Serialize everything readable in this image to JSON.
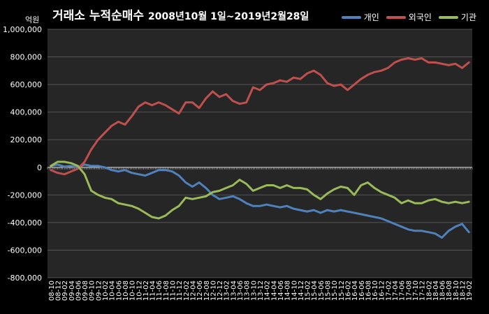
{
  "chart_data": {
    "type": "line",
    "title": "거래소 누적순매수",
    "subtitle": "2008년10월 1일~2019년2월28일",
    "ylabel": "억원",
    "ylim": [
      -800000,
      1000000
    ],
    "yticks": [
      "1,000,000",
      "800,000",
      "600,000",
      "400,000",
      "200,000",
      "0",
      "-200,000",
      "-400,000",
      "-600,000",
      "-800,000"
    ],
    "ytick_values": [
      1000000,
      800000,
      600000,
      400000,
      200000,
      0,
      -200000,
      -400000,
      -600000,
      -800000
    ],
    "grid": true,
    "legend": "top-right",
    "x": [
      "08-10",
      "08-12",
      "09-02",
      "09-04",
      "09-06",
      "09-08",
      "09-10",
      "09-12",
      "10-02",
      "10-04",
      "10-06",
      "10-08",
      "10-10",
      "10-12",
      "11-02",
      "11-04",
      "11-06",
      "11-08",
      "11-10",
      "11-12",
      "12-02",
      "12-04",
      "12-06",
      "12-08",
      "12-10",
      "12-12",
      "13-02",
      "13-04",
      "13-06",
      "13-08",
      "13-10",
      "13-12",
      "14-02",
      "14-04",
      "14-06",
      "14-08",
      "14-10",
      "14-12",
      "15-02",
      "15-04",
      "15-06",
      "15-08",
      "15-10",
      "15-12",
      "16-02",
      "16-04",
      "16-06",
      "16-08",
      "16-10",
      "16-12",
      "17-02",
      "17-04",
      "17-06",
      "17-08",
      "17-10",
      "17-12",
      "18-02",
      "18-04",
      "18-06",
      "18-08",
      "18-10",
      "18-12",
      "19-02"
    ],
    "series": [
      {
        "name": "개인",
        "color": "#4f81bd",
        "values": [
          10000,
          20000,
          5000,
          10000,
          0,
          20000,
          10000,
          10000,
          0,
          -20000,
          -30000,
          -20000,
          -40000,
          -50000,
          -60000,
          -40000,
          -20000,
          -20000,
          -30000,
          -60000,
          -110000,
          -140000,
          -110000,
          -150000,
          -200000,
          -230000,
          -220000,
          -210000,
          -230000,
          -260000,
          -280000,
          -280000,
          -270000,
          -280000,
          -290000,
          -280000,
          -300000,
          -310000,
          -320000,
          -310000,
          -330000,
          -310000,
          -320000,
          -310000,
          -320000,
          -330000,
          -340000,
          -350000,
          -360000,
          -370000,
          -390000,
          -410000,
          -430000,
          -450000,
          -460000,
          -460000,
          -470000,
          -480000,
          -510000,
          -460000,
          -430000,
          -410000,
          -470000
        ]
      },
      {
        "name": "외국인",
        "color": "#c0504d",
        "values": [
          -20000,
          -40000,
          -50000,
          -30000,
          -10000,
          40000,
          130000,
          200000,
          250000,
          300000,
          330000,
          310000,
          370000,
          440000,
          470000,
          450000,
          470000,
          450000,
          420000,
          390000,
          470000,
          470000,
          430000,
          500000,
          550000,
          510000,
          530000,
          480000,
          460000,
          470000,
          580000,
          560000,
          600000,
          610000,
          630000,
          620000,
          650000,
          640000,
          680000,
          700000,
          670000,
          610000,
          590000,
          600000,
          560000,
          600000,
          640000,
          670000,
          690000,
          700000,
          720000,
          760000,
          780000,
          790000,
          780000,
          790000,
          760000,
          760000,
          750000,
          740000,
          750000,
          720000,
          760000
        ]
      },
      {
        "name": "기관",
        "color": "#9bbb59",
        "values": [
          10000,
          40000,
          40000,
          30000,
          10000,
          -50000,
          -170000,
          -200000,
          -220000,
          -230000,
          -260000,
          -270000,
          -280000,
          -300000,
          -330000,
          -360000,
          -370000,
          -350000,
          -310000,
          -280000,
          -220000,
          -230000,
          -220000,
          -210000,
          -180000,
          -170000,
          -150000,
          -130000,
          -90000,
          -120000,
          -170000,
          -150000,
          -130000,
          -130000,
          -150000,
          -130000,
          -150000,
          -150000,
          -160000,
          -200000,
          -230000,
          -190000,
          -160000,
          -140000,
          -150000,
          -200000,
          -130000,
          -110000,
          -150000,
          -180000,
          -200000,
          -220000,
          -260000,
          -240000,
          -260000,
          -260000,
          -240000,
          -230000,
          -250000,
          -260000,
          -250000,
          -260000,
          -250000
        ]
      }
    ]
  }
}
